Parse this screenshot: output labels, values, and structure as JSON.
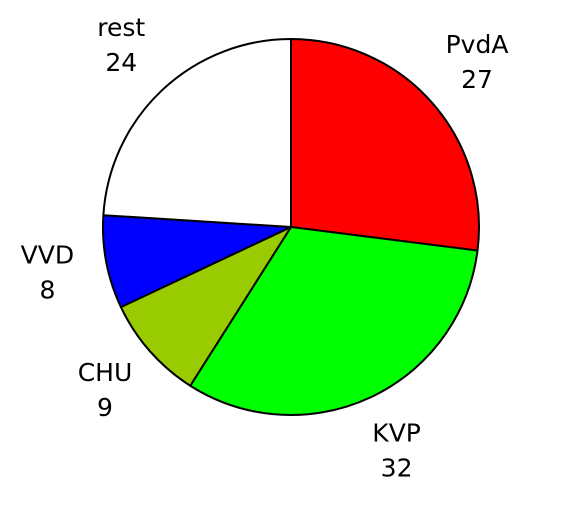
{
  "chart_data": {
    "type": "pie",
    "categories": [
      "PvdA",
      "KVP",
      "CHU",
      "VVD",
      "rest"
    ],
    "values": [
      27,
      32,
      9,
      8,
      24
    ],
    "colors": [
      "#ff0000",
      "#00ff00",
      "#99cc00",
      "#0000ff",
      "#ffffff"
    ]
  }
}
